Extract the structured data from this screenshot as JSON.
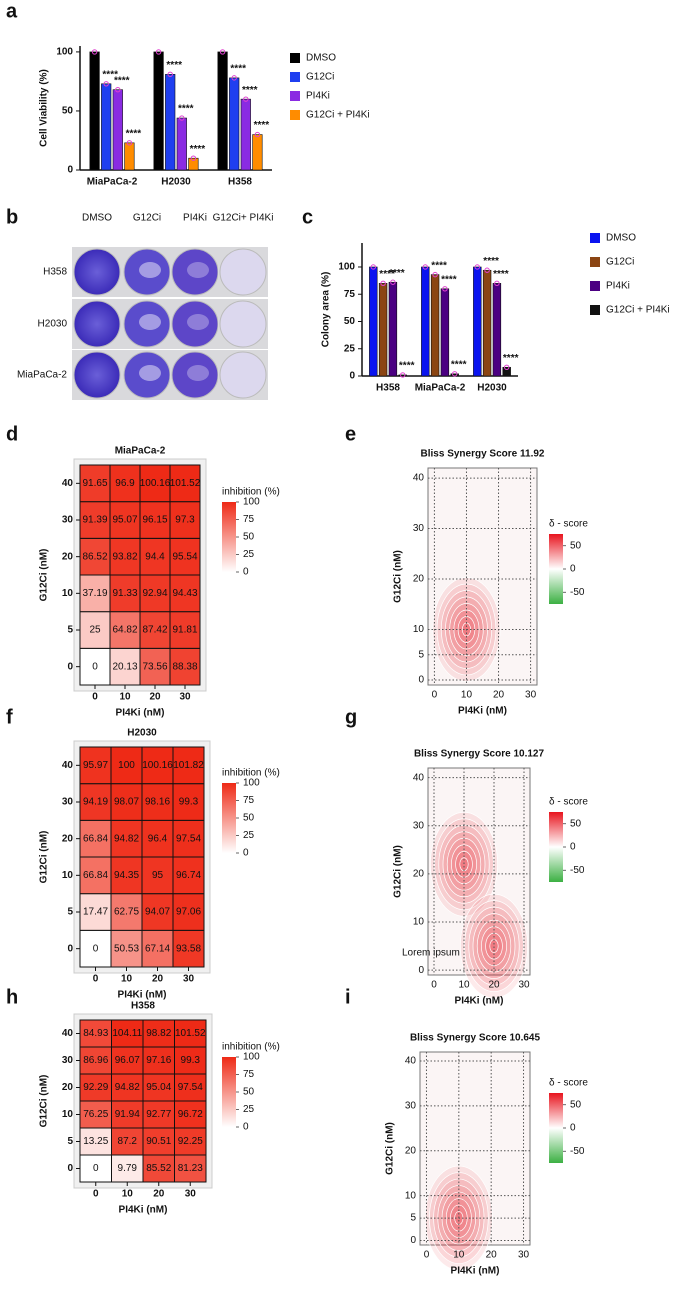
{
  "chart_data": [
    {
      "type": "bar",
      "panel": "a",
      "ylabel": "Cell Viability (%)",
      "categories": [
        "MiaPaCa-2",
        "H2030",
        "H358"
      ],
      "ylim": [
        0,
        105
      ],
      "yticks": [
        0,
        50,
        100
      ],
      "series": [
        {
          "name": "DMSO",
          "color": "#000000",
          "values": [
            100,
            100,
            100
          ]
        },
        {
          "name": "G12Ci",
          "color": "#1f3ff0",
          "values": [
            73,
            81,
            78
          ],
          "stars": [
            "****",
            "****",
            "****"
          ]
        },
        {
          "name": "PI4Ki",
          "color": "#8a2be2",
          "values": [
            68,
            44,
            60
          ],
          "stars": [
            "****",
            "****",
            "****"
          ]
        },
        {
          "name": "G12Ci + PI4Ki",
          "color": "#ff8c00",
          "values": [
            23,
            10,
            30
          ],
          "stars": [
            "****",
            "****",
            "****"
          ]
        }
      ]
    },
    {
      "type": "bar",
      "panel": "c",
      "ylabel": "Colony area (%)",
      "categories": [
        "H358",
        "MiaPaCa-2",
        "H2030"
      ],
      "ylim": [
        0,
        122
      ],
      "yticks": [
        0,
        25,
        50,
        75,
        100
      ],
      "series": [
        {
          "name": "DMSO",
          "color": "#0a14f0",
          "values": [
            100,
            100,
            100
          ]
        },
        {
          "name": "G12Ci",
          "color": "#8b4513",
          "values": [
            85,
            93,
            97
          ],
          "stars": [
            "****",
            "****",
            "****"
          ]
        },
        {
          "name": "PI4Ki",
          "color": "#4b0082",
          "values": [
            86,
            80,
            85
          ],
          "stars": [
            "****",
            "****",
            "****"
          ]
        },
        {
          "name": "G12Ci + PI4Ki",
          "color": "#111111",
          "values": [
            1,
            2,
            8
          ],
          "stars": [
            "****",
            "****",
            "****"
          ]
        }
      ]
    },
    {
      "type": "heatmap",
      "panel": "d",
      "title": "MiaPaCa-2",
      "xlabel": "PI4Ki (nM)",
      "ylabel": "G12Ci (nM)",
      "x": [
        0,
        10,
        20,
        30
      ],
      "y": [
        0,
        5,
        10,
        20,
        30,
        40
      ],
      "values": [
        [
          0,
          20.13,
          73.56,
          88.38
        ],
        [
          25,
          64.82,
          87.42,
          91.81
        ],
        [
          37.19,
          91.33,
          92.94,
          94.43
        ],
        [
          86.52,
          93.82,
          94.4,
          95.54
        ],
        [
          91.39,
          95.07,
          96.15,
          97.3
        ],
        [
          91.65,
          96.9,
          100.16,
          101.52
        ]
      ],
      "legend_title": "inhibition (%)",
      "cbar_lim": [
        0,
        100
      ],
      "cbar_ticks": [
        0,
        25,
        50,
        75,
        100
      ],
      "color": "#ee2a16",
      "tick_color": "#d40000"
    },
    {
      "type": "contour",
      "panel": "e",
      "title": "Bliss Synergy Score 11.92",
      "xlabel": "PI4Ki (nM)",
      "ylabel": "G12Ci (nM)",
      "xlim": [
        -2,
        32
      ],
      "ylim": [
        -1,
        42
      ],
      "xticks": [
        0,
        10,
        20,
        30
      ],
      "yticks": [
        0,
        5,
        10,
        20,
        30,
        40
      ],
      "peaks": [
        {
          "x": 10,
          "y": 10
        }
      ],
      "legend_title": "δ - score",
      "cbar_lim": [
        -75,
        75
      ],
      "cbar_ticks": [
        50,
        0,
        -50
      ]
    },
    {
      "type": "heatmap",
      "panel": "f",
      "title": "H2030",
      "xlabel": "PI4Ki (nM)",
      "ylabel": "G12Ci (nM)",
      "x": [
        0,
        10,
        20,
        30
      ],
      "y": [
        0,
        5,
        10,
        20,
        30,
        40
      ],
      "values": [
        [
          0,
          50.53,
          67.14,
          93.58
        ],
        [
          17.47,
          62.75,
          94.07,
          97.06
        ],
        [
          66.84,
          94.35,
          95,
          96.74
        ],
        [
          66.84,
          94.82,
          96.4,
          97.54
        ],
        [
          94.19,
          98.07,
          98.16,
          99.3
        ],
        [
          95.97,
          100,
          100.16,
          101.82
        ]
      ],
      "legend_title": "inhibition (%)",
      "cbar_lim": [
        0,
        100
      ],
      "cbar_ticks": [
        0,
        25,
        50,
        75,
        100
      ],
      "color": "#ee2a16",
      "tick_color": "#d40000"
    },
    {
      "type": "contour",
      "panel": "g",
      "title": "Bliss Synergy Score 10.127",
      "xlabel": "PI4Ki (nM)",
      "ylabel": "G12Ci (nM)",
      "xlim": [
        -2,
        32
      ],
      "ylim": [
        -1,
        42
      ],
      "xticks": [
        0,
        10,
        20,
        30
      ],
      "yticks": [
        0,
        10,
        20,
        30,
        40
      ],
      "peaks": [
        {
          "x": 10,
          "y": 22
        },
        {
          "x": 20,
          "y": 5
        }
      ],
      "annotation": "Lorem ipsum",
      "legend_title": "δ - score",
      "cbar_lim": [
        -75,
        75
      ],
      "cbar_ticks": [
        50,
        0,
        -50
      ]
    },
    {
      "type": "heatmap",
      "panel": "h",
      "title": "H358",
      "xlabel": "PI4Ki (nM)",
      "ylabel": "G12Ci (nM)",
      "x": [
        0,
        10,
        20,
        30
      ],
      "y": [
        0,
        5,
        10,
        20,
        30,
        40
      ],
      "values": [
        [
          0,
          9.79,
          85.52,
          81.23
        ],
        [
          13.25,
          87.2,
          90.51,
          92.25
        ],
        [
          76.25,
          91.94,
          92.77,
          96.72
        ],
        [
          92.29,
          94.82,
          95.04,
          97.54
        ],
        [
          86.96,
          96.07,
          97.16,
          99.3
        ],
        [
          84.93,
          104.11,
          98.82,
          101.52
        ]
      ],
      "legend_title": "inhibition (%)",
      "cbar_lim": [
        0,
        100
      ],
      "cbar_ticks": [
        0,
        25,
        50,
        75,
        100
      ],
      "color": "#ee2a16",
      "tick_color": "#d40000"
    },
    {
      "type": "contour",
      "panel": "i",
      "title": "Bliss Synergy Score 10.645",
      "xlabel": "PI4Ki (nM)",
      "ylabel": "G12Ci (nM)",
      "xlim": [
        -2,
        32
      ],
      "ylim": [
        -1,
        42
      ],
      "xticks": [
        0,
        10,
        20,
        30
      ],
      "yticks": [
        0,
        5,
        10,
        20,
        30,
        40
      ],
      "peaks": [
        {
          "x": 10,
          "y": 5
        }
      ],
      "legend_title": "δ - score",
      "cbar_lim": [
        -75,
        75
      ],
      "cbar_ticks": [
        50,
        0,
        -50
      ]
    }
  ],
  "photo_panel": {
    "panel": "b",
    "columns": [
      "DMSO",
      "G12Ci",
      "PI4Ki",
      "G12Ci+ PI4Ki"
    ],
    "rows": [
      "H358",
      "H2030",
      "MiaPaCa-2"
    ]
  }
}
